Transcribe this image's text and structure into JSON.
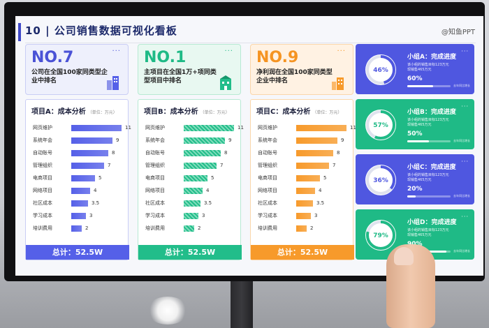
{
  "header": {
    "title": "10 | 公司销售数据可视化看板",
    "brand": "@知鱼PPT"
  },
  "stats": [
    {
      "rank": "NO.7",
      "desc": "公司在全国100家同类型企业中排名",
      "color": "#4a52d6",
      "bg": "#eef0fc",
      "border": "#c9cdf5",
      "dots": "···"
    },
    {
      "rank": "NO.1",
      "desc": "主项目在全国1万+项同类型项目中排名",
      "color": "#1fba86",
      "bg": "#e8f8f1",
      "border": "#b7e9d3",
      "dots": "···"
    },
    {
      "rank": "NO.9",
      "desc": "净利润在全国100家同类型企业中排名",
      "color": "#f59422",
      "bg": "#fff2e3",
      "border": "#fbd6a9",
      "dots": "···"
    }
  ],
  "cards": [
    {
      "title": "项目A：成本分析",
      "unit": "（单位：万元）",
      "color": "#5560e8",
      "border": "#c9cdf5",
      "total": "总计：52.5W",
      "items": [
        {
          "label": "网页维护",
          "value": "11",
          "num": 11
        },
        {
          "label": "系统年会",
          "value": "9",
          "num": 9
        },
        {
          "label": "自动账号",
          "value": "8",
          "num": 8
        },
        {
          "label": "管理组织",
          "value": "7",
          "num": 7
        },
        {
          "label": "电商项目",
          "value": "5",
          "num": 5
        },
        {
          "label": "网络项目",
          "value": "4",
          "num": 4
        },
        {
          "label": "社区成本",
          "value": "3.5",
          "num": 3.5
        },
        {
          "label": "学习成本",
          "value": "3",
          "num": 3
        },
        {
          "label": "培训费用",
          "value": "2",
          "num": 2
        }
      ]
    },
    {
      "title": "项目B：成本分析",
      "unit": "（单位：万元）",
      "color": "#22bd8a",
      "border": "#b7e9d3",
      "total": "总计：52.5W",
      "items": [
        {
          "label": "网页维护",
          "value": "11",
          "num": 11
        },
        {
          "label": "系统年会",
          "value": "9",
          "num": 9
        },
        {
          "label": "自动账号",
          "value": "8",
          "num": 8
        },
        {
          "label": "管理组织",
          "value": "7",
          "num": 7
        },
        {
          "label": "电商项目",
          "value": "5",
          "num": 5
        },
        {
          "label": "网络项目",
          "value": "4",
          "num": 4
        },
        {
          "label": "社区成本",
          "value": "3.5",
          "num": 3.5
        },
        {
          "label": "学习成本",
          "value": "3",
          "num": 3
        },
        {
          "label": "培训费用",
          "value": "2",
          "num": 2
        }
      ]
    },
    {
      "title": "项目C：成本分析",
      "unit": "（单位：万元）",
      "color": "#f79a2b",
      "border": "#fbd6a9",
      "total": "总计：52.5W",
      "items": [
        {
          "label": "网页维护",
          "value": "11",
          "num": 11
        },
        {
          "label": "系统年会",
          "value": "9",
          "num": 9
        },
        {
          "label": "自动账号",
          "value": "8",
          "num": 8
        },
        {
          "label": "管理组织",
          "value": "7",
          "num": 7
        },
        {
          "label": "电商项目",
          "value": "5",
          "num": 5
        },
        {
          "label": "网络项目",
          "value": "4",
          "num": 4
        },
        {
          "label": "社区成本",
          "value": "3.5",
          "num": 3.5
        },
        {
          "label": "学习成本",
          "value": "3",
          "num": 3
        },
        {
          "label": "培训费用",
          "value": "2",
          "num": 2
        }
      ]
    }
  ],
  "groups": [
    {
      "title": "小组A：完成进度",
      "desc1": "该小组的销售目标123万元",
      "desc2": "现销售465万元",
      "ring": "46%",
      "ring_num": 46,
      "value": "60%",
      "value_num": 60,
      "bg": "#4f57e0",
      "note": "去年同比增长"
    },
    {
      "title": "小组B：完成进度",
      "desc1": "该小组的销售目标123万元",
      "desc2": "现销售465万元",
      "ring": "57%",
      "ring_num": 57,
      "value": "50%",
      "value_num": 50,
      "bg": "#1fba86",
      "note": "去年同比增长"
    },
    {
      "title": "小组C：完成进度",
      "desc1": "该小组的销售目标123万元",
      "desc2": "现销售465万元",
      "ring": "36%",
      "ring_num": 36,
      "value": "20%",
      "value_num": 20,
      "bg": "#4f57e0",
      "note": "去年同比增长"
    },
    {
      "title": "小组D：完成进度",
      "desc1": "该小组的销售目标123万元",
      "desc2": "现销售465万元",
      "ring": "79%",
      "ring_num": 79,
      "value": "90%",
      "value_num": 90,
      "bg": "#1fba86",
      "note": "去年同比增长"
    }
  ]
}
